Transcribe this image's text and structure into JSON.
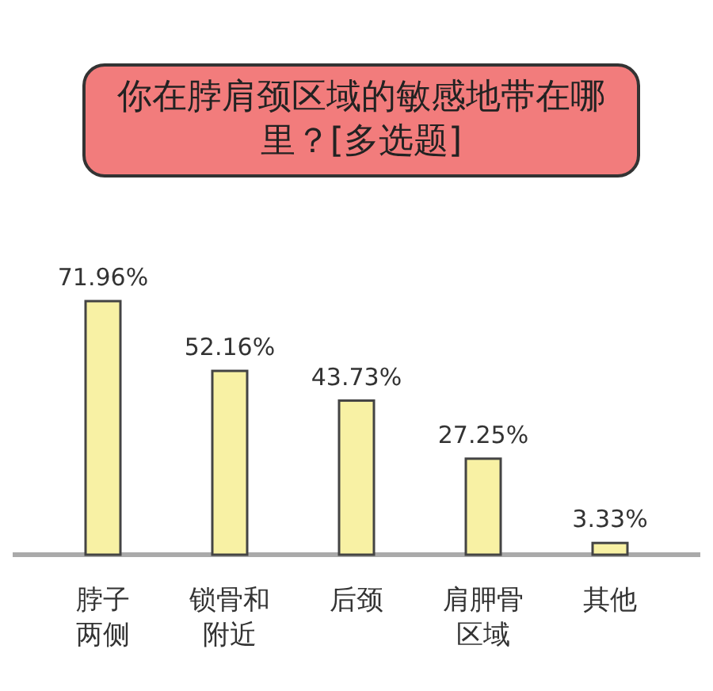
{
  "chart_data": {
    "type": "bar",
    "title": "你在脖肩颈区域的敏感地带在哪里？[多选题]",
    "categories": [
      "脖子两侧",
      "锁骨和附近",
      "后颈",
      "肩胛骨区域",
      "其他"
    ],
    "values": [
      71.96,
      52.16,
      43.73,
      27.25,
      3.33
    ],
    "value_labels": [
      "71.96%",
      "52.16%",
      "43.73%",
      "27.25%",
      "3.33%"
    ],
    "color": "#f8f1a4"
  }
}
